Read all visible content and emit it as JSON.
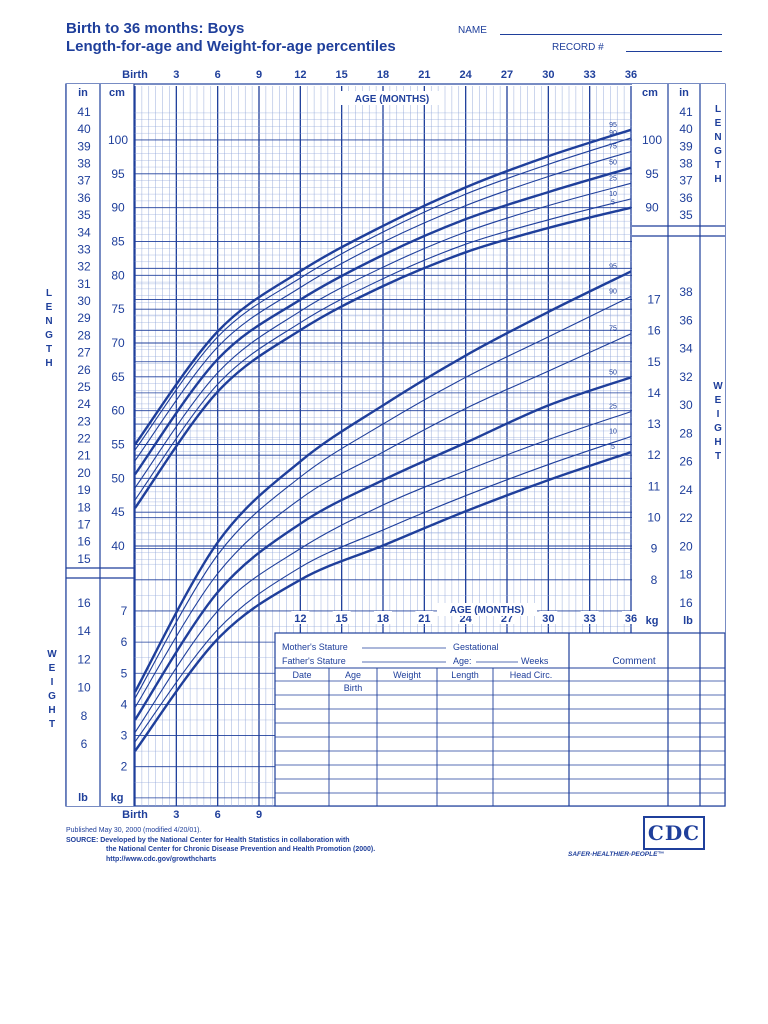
{
  "header": {
    "title_line1": "Birth to 36 months: Boys",
    "title_line2": "Length-for-age and Weight-for-age percentiles",
    "name_label": "NAME",
    "record_label": "RECORD #"
  },
  "chart_data": {
    "type": "line",
    "title": "Length-for-age and Weight-for-age percentiles",
    "xlabel": "AGE (MONTHS)",
    "x_ticks": [
      "Birth",
      "3",
      "6",
      "9",
      "12",
      "15",
      "18",
      "21",
      "24",
      "27",
      "30",
      "33",
      "36"
    ],
    "x": [
      0,
      6,
      12,
      18,
      24,
      30,
      36
    ],
    "length": {
      "ylabel": "LENGTH",
      "units_metric": "cm",
      "units_imperial": "in",
      "cm_ticks": [
        "40",
        "45",
        "50",
        "55",
        "60",
        "65",
        "70",
        "75",
        "80",
        "85",
        "90",
        "95",
        "100"
      ],
      "in_ticks": [
        "15",
        "16",
        "17",
        "18",
        "19",
        "20",
        "21",
        "22",
        "23",
        "24",
        "25",
        "26",
        "27",
        "28",
        "29",
        "30",
        "31",
        "32",
        "33",
        "34",
        "35",
        "36",
        "37",
        "38",
        "39",
        "40",
        "41"
      ],
      "right_cm_ticks": [
        "90",
        "95",
        "100"
      ],
      "right_in_ticks": [
        "35",
        "36",
        "37",
        "38",
        "39",
        "40",
        "41"
      ],
      "series": [
        {
          "name": "5",
          "values": [
            45.6,
            62.8,
            71.9,
            78.4,
            83.4,
            87.0,
            90.0
          ]
        },
        {
          "name": "10",
          "values": [
            46.8,
            63.9,
            73.0,
            79.5,
            84.6,
            88.2,
            91.3
          ]
        },
        {
          "name": "25",
          "values": [
            48.6,
            65.6,
            74.7,
            81.2,
            86.4,
            90.3,
            93.6
          ]
        },
        {
          "name": "50",
          "values": [
            50.6,
            67.6,
            76.4,
            83.0,
            88.3,
            92.3,
            95.9
          ]
        },
        {
          "name": "75",
          "values": [
            52.6,
            69.4,
            78.2,
            84.9,
            90.3,
            94.6,
            98.3
          ]
        },
        {
          "name": "90",
          "values": [
            54.2,
            70.9,
            79.6,
            86.4,
            92.0,
            96.4,
            100.3
          ]
        },
        {
          "name": "95",
          "values": [
            55.0,
            71.7,
            80.6,
            87.3,
            93.0,
            97.6,
            101.5
          ]
        }
      ]
    },
    "weight": {
      "ylabel": "WEIGHT",
      "units_metric": "kg",
      "units_imperial": "lb",
      "kg_ticks_left": [
        "2",
        "3",
        "4",
        "5",
        "6",
        "7"
      ],
      "lb_ticks_left": [
        "6",
        "8",
        "10",
        "12",
        "14",
        "16"
      ],
      "kg_ticks_right": [
        "8",
        "9",
        "10",
        "11",
        "12",
        "13",
        "14",
        "15",
        "16",
        "17"
      ],
      "lb_ticks_right": [
        "16",
        "18",
        "20",
        "22",
        "24",
        "26",
        "28",
        "30",
        "32",
        "34",
        "36",
        "38"
      ],
      "series": [
        {
          "name": "5",
          "values": [
            2.5,
            6.1,
            8.0,
            9.1,
            10.2,
            11.2,
            12.1
          ]
        },
        {
          "name": "10",
          "values": [
            2.8,
            6.4,
            8.4,
            9.6,
            10.7,
            11.7,
            12.6
          ]
        },
        {
          "name": "25",
          "values": [
            3.1,
            7.0,
            9.0,
            10.4,
            11.5,
            12.5,
            13.4
          ]
        },
        {
          "name": "50",
          "values": [
            3.5,
            7.6,
            9.8,
            11.2,
            12.4,
            13.6,
            14.5
          ]
        },
        {
          "name": "75",
          "values": [
            3.9,
            8.2,
            10.6,
            12.1,
            13.5,
            14.7,
            15.9
          ]
        },
        {
          "name": "90",
          "values": [
            4.2,
            8.8,
            11.3,
            13.0,
            14.5,
            15.8,
            17.1
          ]
        },
        {
          "name": "95",
          "values": [
            4.4,
            9.2,
            11.8,
            13.6,
            15.2,
            16.6,
            17.9
          ]
        }
      ]
    }
  },
  "side_labels": {
    "length_letters": [
      "L",
      "E",
      "N",
      "G",
      "T",
      "H"
    ],
    "weight_letters": [
      "W",
      "E",
      "I",
      "G",
      "H",
      "T"
    ]
  },
  "table": {
    "mothers_stature": "Mother's Stature",
    "fathers_stature": "Father's Stature",
    "gestational": "Gestational",
    "age_weeks": "Age:",
    "weeks": "Weeks",
    "comment": "Comment",
    "columns": [
      "Date",
      "Age",
      "Weight",
      "Length",
      "Head Circ."
    ],
    "birth_row": "Birth"
  },
  "footer": {
    "published": "Published May 30, 2000 (modified 4/20/01).",
    "source_label": "SOURCE:",
    "source_text": "Developed by the National Center for Health Statistics in collaboration with",
    "source_text2": "the National Center for Chronic Disease Prevention and Health Promotion (2000).",
    "url": "http://www.cdc.gov/growthcharts",
    "logo": "CDC",
    "tagline": "SAFER·HEALTHIER·PEOPLE™"
  },
  "colors": {
    "ink": "#1f3f9b",
    "grid": "#8fa5d8"
  }
}
